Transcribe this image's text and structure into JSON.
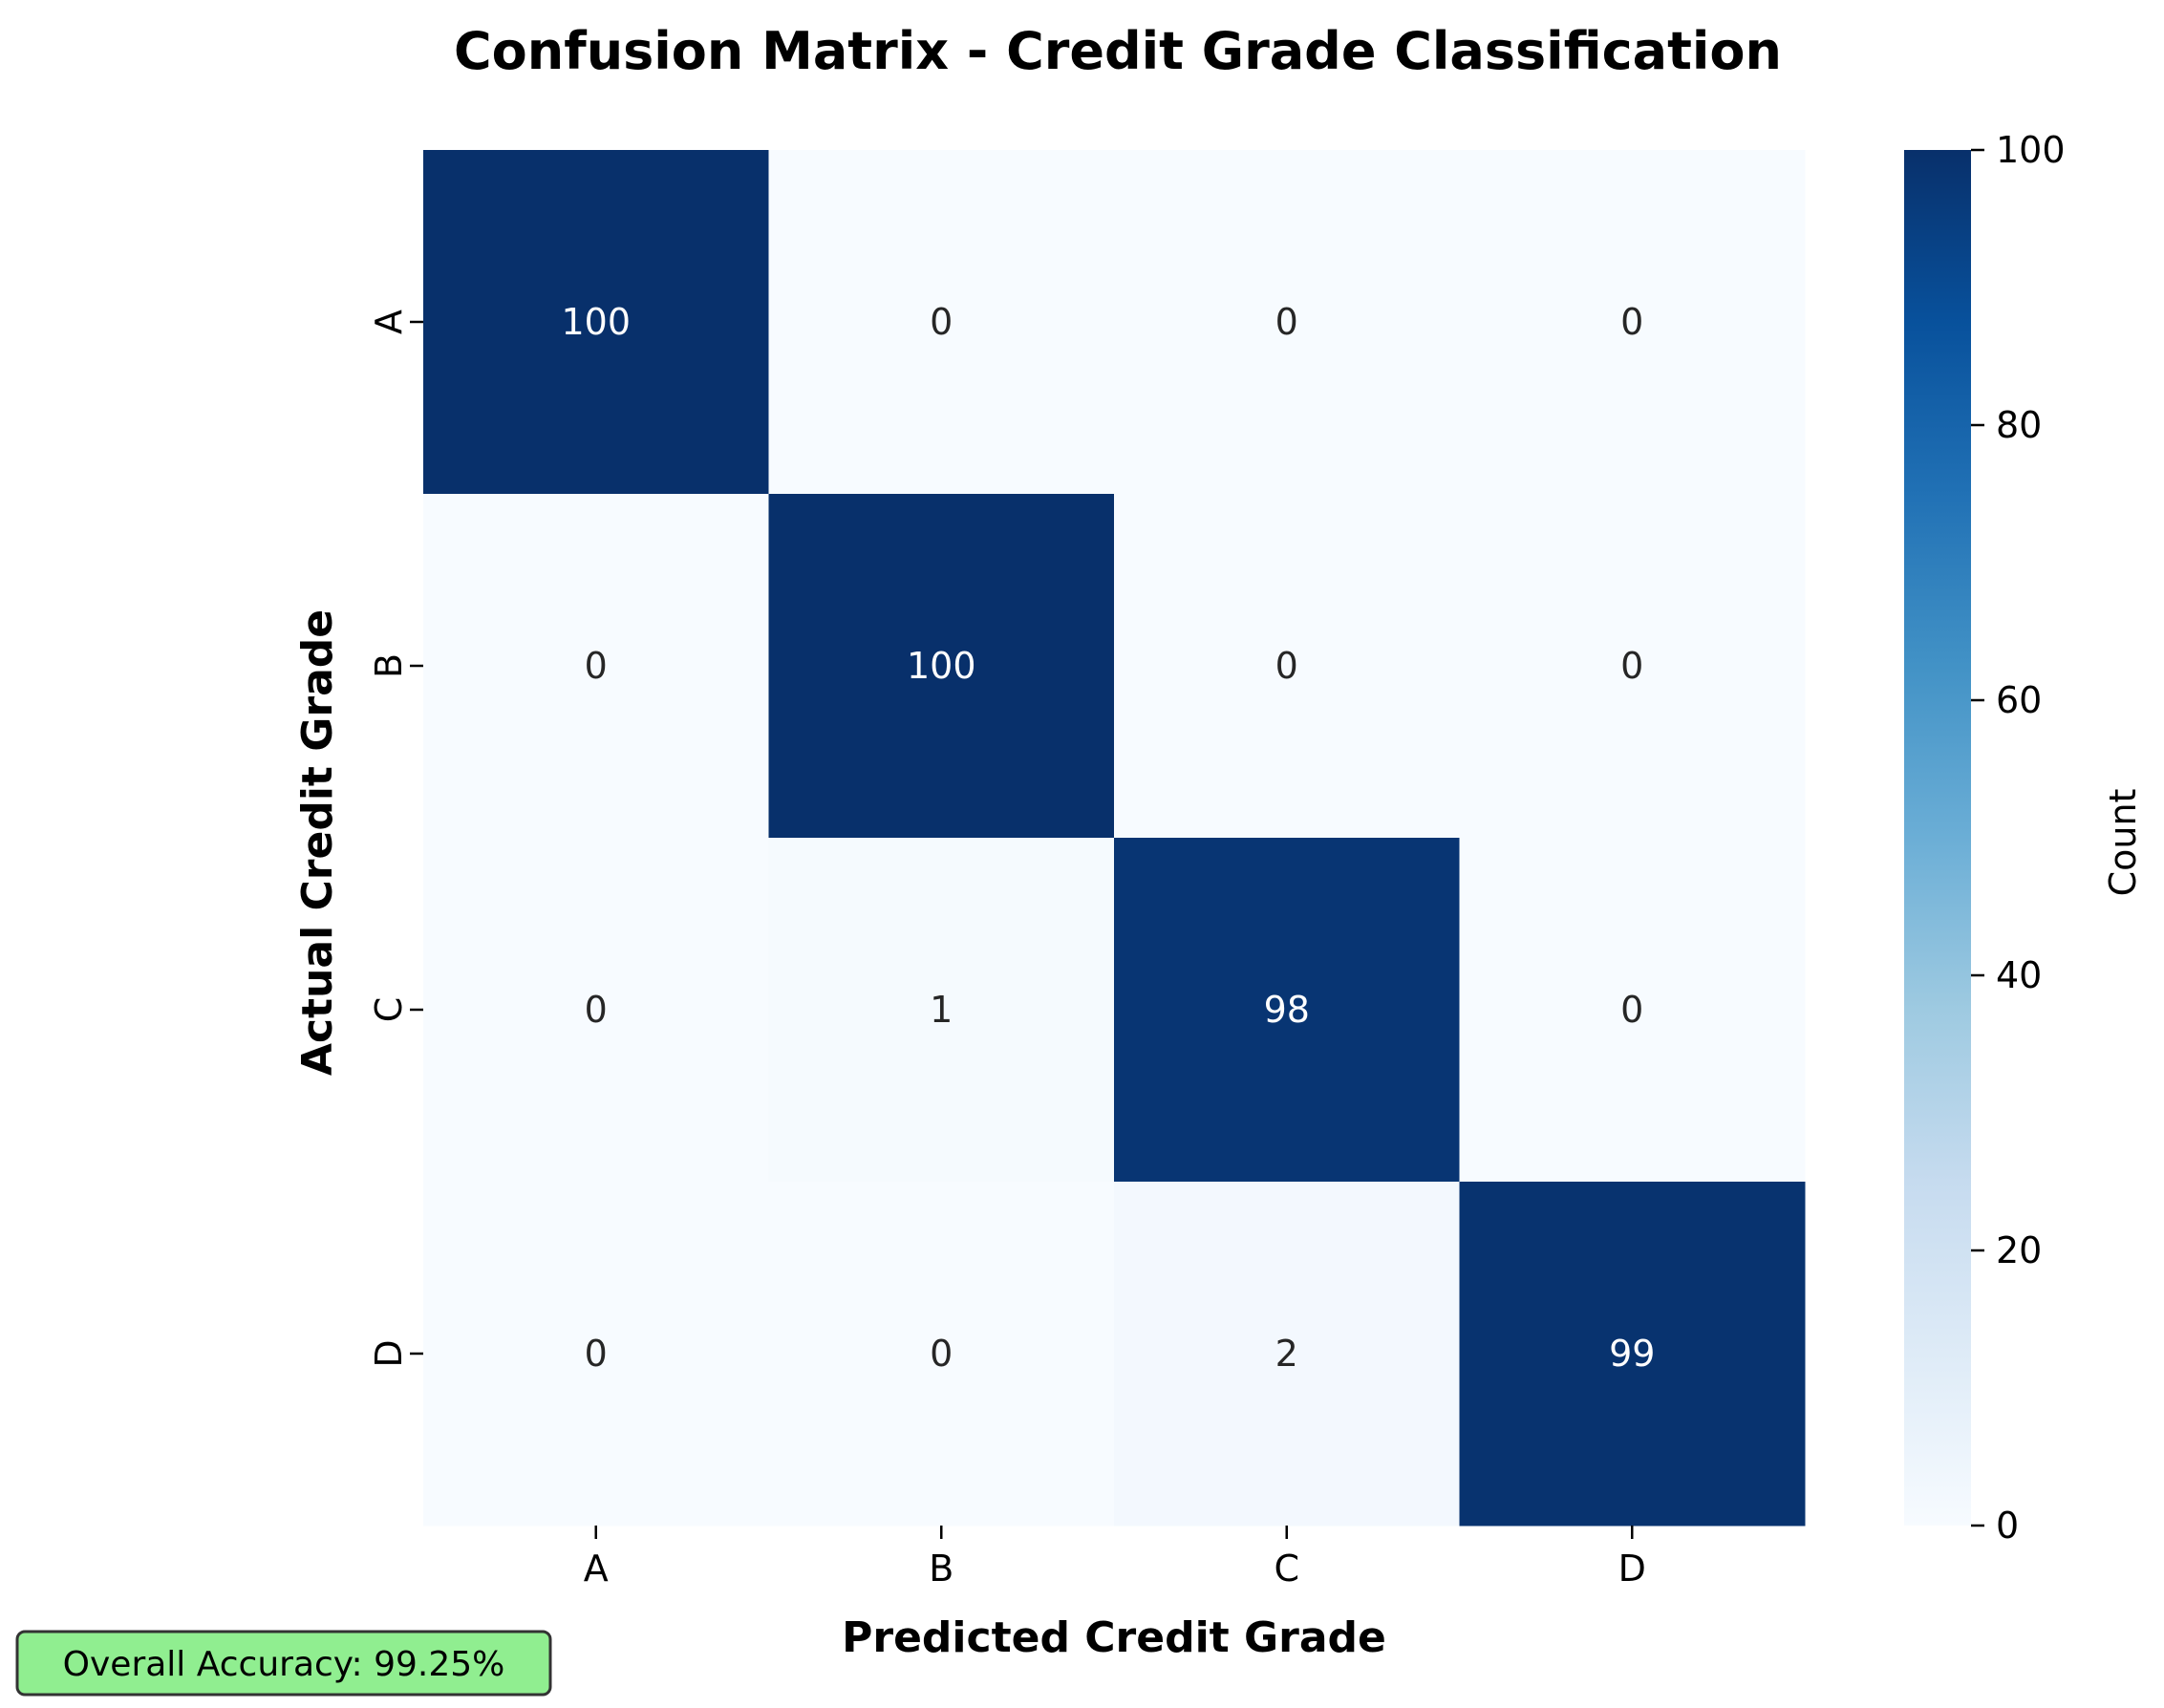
{
  "chart_data": {
    "type": "heatmap",
    "title": "Confusion Matrix - Credit Grade Classification",
    "xlabel": "Predicted Credit Grade",
    "ylabel": "Actual Credit Grade",
    "x_categories": [
      "A",
      "B",
      "C",
      "D"
    ],
    "y_categories": [
      "A",
      "B",
      "C",
      "D"
    ],
    "values": [
      [
        100,
        0,
        0,
        0
      ],
      [
        0,
        100,
        0,
        0
      ],
      [
        0,
        1,
        98,
        0
      ],
      [
        0,
        0,
        2,
        99
      ]
    ],
    "colormap": "Blues",
    "vmin": 0,
    "vmax": 100,
    "colorbar": {
      "label": "Count",
      "ticks": [
        0,
        20,
        40,
        60,
        80,
        100
      ]
    },
    "annotation": "Overall Accuracy: 99.25%",
    "colors": {
      "cell_low": "#f7fbff",
      "cell_high": "#08306b",
      "annotation_bg": "#90ee90",
      "annotation_border": "#333333"
    }
  }
}
